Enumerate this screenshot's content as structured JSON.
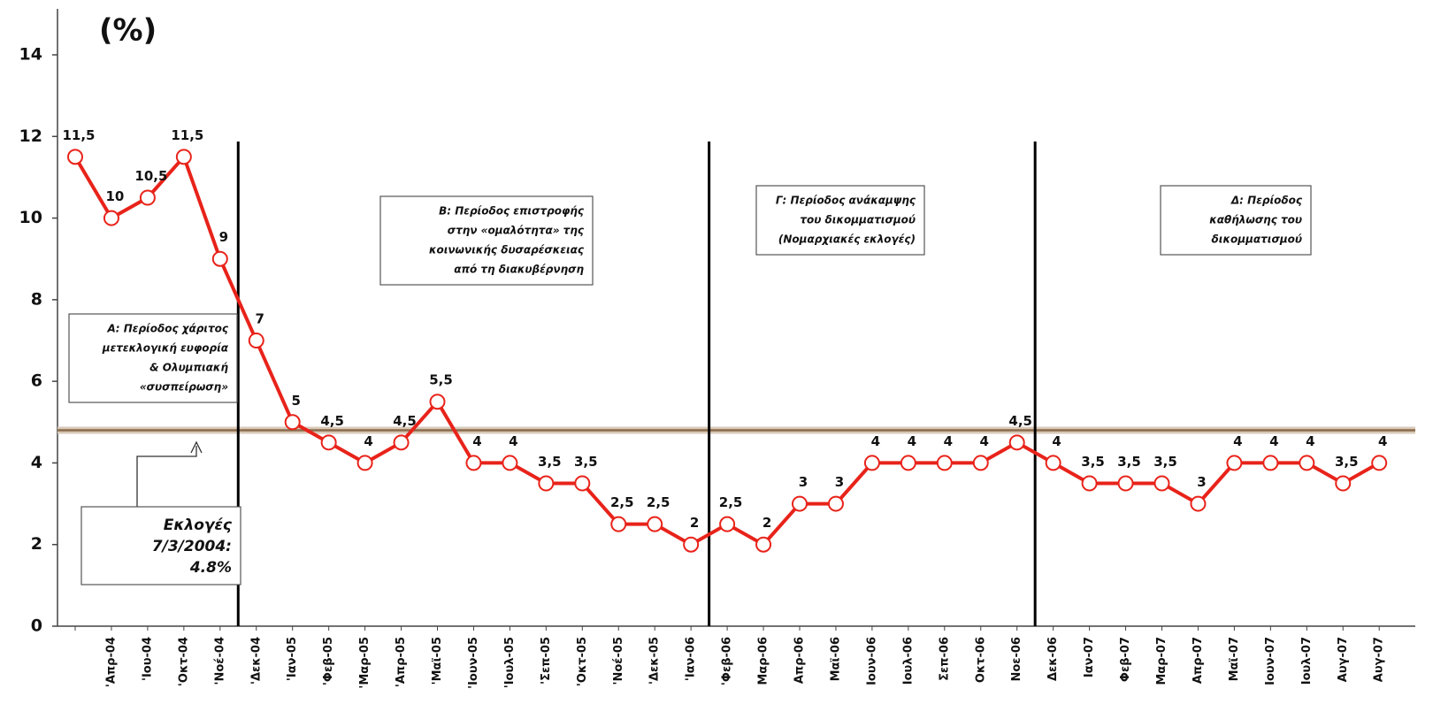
{
  "chart_data": {
    "type": "line",
    "ylabel": "(%)",
    "categories": [
      null,
      "'Απρ-04",
      "'Ιου-04",
      "'Οκτ-04",
      "'Νοέ-04",
      "'Δεκ-04",
      "'Ιαν-05",
      "'Φεβ-05",
      "'Μαρ-05",
      "'Απρ-05",
      "'Μαϊ-05",
      "'Ιουν-05",
      "'Ιουλ-05",
      "'Σεπ-05",
      "'Οκτ-05",
      "'Νοέ-05",
      "'Δεκ-05",
      "'Ιαν-06",
      "'Φεβ-06",
      "Μαρ-06",
      "Απρ-06",
      "Μαϊ-06",
      "Ιουν-06",
      "Ιουλ-06",
      "Σεπ-06",
      "Οκτ-06",
      "Νοε-06",
      "Δεκ-06",
      "Ιαν-07",
      "Φεβ-07",
      "Μαρ-07",
      "Απρ-07",
      "Μαϊ-07",
      "Ιουν-07",
      "Ιουλ-07",
      "Αυγ-07",
      "Αυγ-07"
    ],
    "series": [
      {
        "name": "",
        "color": "#e8231a",
        "values": [
          11.5,
          10,
          10.5,
          11.5,
          9,
          7,
          5,
          4.5,
          4,
          4.5,
          5.5,
          4,
          4,
          3.5,
          3.5,
          2.5,
          2.5,
          2,
          2.5,
          2,
          3,
          3,
          4,
          4,
          4,
          4,
          4.5,
          4,
          3.5,
          3.5,
          3.5,
          3,
          4,
          4,
          4,
          3.5,
          4
        ],
        "value_labels": [
          "11,5",
          "10",
          "10,5",
          "11,5",
          "9",
          "7",
          "5",
          "4,5",
          "4",
          "4,5",
          "5,5",
          "4",
          "4",
          "3,5",
          "3,5",
          "2,5",
          "2,5",
          "2",
          "2,5",
          "2",
          "3",
          "3",
          "4",
          "4",
          "4",
          "4",
          "4,5",
          "4",
          "3,5",
          "3,5",
          "3,5",
          "3",
          "4",
          "4",
          "4",
          "3,5",
          "4"
        ]
      }
    ],
    "ylim": [
      0,
      14
    ],
    "yticks": [
      0,
      2,
      4,
      6,
      8,
      10,
      12,
      14
    ],
    "reference_line": {
      "value": 4.8,
      "color": "#8b6a4a"
    },
    "periods": [
      {
        "lines": [
          "Α: Περίοδος χάριτος",
          "μετεκλογική ευφορία",
          "& Ολυμπιακή",
          "«συσπείρωση»"
        ]
      },
      {
        "lines": [
          "Β: Περίοδος επιστροφής",
          "στην «ομαλότητα» της",
          "κοινωνικής δυσαρέσκειας",
          "από τη διακυβέρνηση"
        ]
      },
      {
        "lines": [
          "Γ: Περίοδος ανάκαμψης",
          "του δικομματισμού",
          "(Νομαρχιακές εκλογές)"
        ]
      },
      {
        "lines": [
          "Δ: Περίοδος",
          "καθήλωσης του",
          "δικομματισμού"
        ]
      }
    ],
    "election_note": [
      "Εκλογές",
      "7/3/2004:",
      "4.8%"
    ]
  }
}
